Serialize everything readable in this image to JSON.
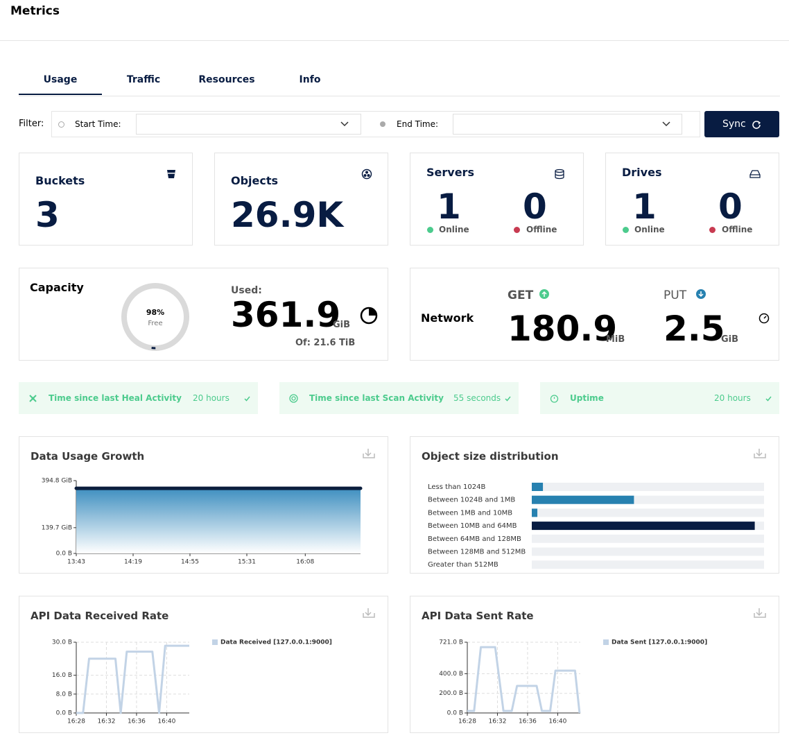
{
  "header": {
    "title": "Metrics"
  },
  "tabs": [
    "Usage",
    "Traffic",
    "Resources",
    "Info"
  ],
  "filter": {
    "label": "Filter:",
    "start_time": "Start Time:",
    "end_time": "End Time:",
    "sync": "Sync"
  },
  "buckets": {
    "title": "Buckets",
    "value": 3
  },
  "objects": {
    "title": "Objects",
    "value": "26.9K"
  },
  "servers": {
    "title": "Servers",
    "online": 1,
    "online_label": "Online",
    "offline": 0,
    "offline_label": "Offline"
  },
  "drives": {
    "title": "Drives",
    "online": 1,
    "online_label": "Online",
    "offline": 0,
    "offline_label": "Offline"
  },
  "capacity": {
    "title": "Capacity",
    "free_percent": 98,
    "free_percent_label": "98%",
    "free_label": "Free",
    "used_label": "Used:",
    "used": 361.9,
    "used_unit": "GiB",
    "total": "Of: 21.6 TiB"
  },
  "network": {
    "title": "Network",
    "get_label": "GET",
    "get": 180.9,
    "get_unit": "MiB",
    "put_label": "PUT",
    "put": 2.5,
    "put_unit": "GiB"
  },
  "activity": [
    {
      "label": "Time since last Heal Activity",
      "value": "20 hours"
    },
    {
      "label": "Time since last Scan Activity",
      "value": "55 seconds"
    },
    {
      "label": "Uptime",
      "value": "20 hours"
    }
  ],
  "chart_data": [
    {
      "type": "area",
      "title": "Data Usage Growth",
      "series": [
        {
          "color": "#0b1e3d",
          "fill": "#3f8fc0",
          "x": [
            823,
            1003
          ],
          "values": [
            353,
            353
          ]
        }
      ],
      "xlim": [
        823,
        1003
      ],
      "xticks": [
        {
          "value": 823,
          "label": "13:43"
        },
        {
          "value": 859,
          "label": "14:19"
        },
        {
          "value": 895,
          "label": "14:55"
        },
        {
          "value": 931,
          "label": "15:31"
        },
        {
          "value": 968,
          "label": "16:08"
        }
      ],
      "ylim": [
        0,
        394.8
      ],
      "yticks": [
        {
          "value": 394.8,
          "label": "394.8 GiB"
        },
        {
          "value": 139.7,
          "label": "139.7 GiB"
        },
        {
          "value": 0,
          "label": "0.0 B"
        }
      ],
      "grid": false
    },
    {
      "type": "hbar",
      "title": "Object size distribution",
      "categories": [
        "Less than 1024B",
        "Between 1024B and 1MB",
        "Between 1MB and 10MB",
        "Between 10MB and 64MB",
        "Between 64MB and 128MB",
        "Between 128MB and 512MB",
        "Greater than 512MB"
      ],
      "values": [
        4.8,
        44,
        2.4,
        96,
        0,
        0,
        0
      ],
      "colors": [
        "#2781b0",
        "#2781b0",
        "#2781b0",
        "#081c42",
        "#2781b0",
        "#2781b0",
        "#2781b0"
      ],
      "xlim": [
        0,
        100
      ]
    },
    {
      "type": "line",
      "title": "API Data Received Rate",
      "series": [
        {
          "name": "Data Received [127.0.0.1:9000]",
          "color": "#c2d3e6",
          "x": [
            988,
            988.9,
            989.7,
            993.2,
            993.9,
            994.7,
            998.1,
            999,
            999.8,
            1003
          ],
          "values": [
            0,
            0,
            23,
            23,
            0,
            26,
            26,
            0,
            28.5,
            28.5
          ]
        }
      ],
      "xlim": [
        988,
        1003
      ],
      "xticks": [
        {
          "value": 988,
          "label": "16:28"
        },
        {
          "value": 992,
          "label": "16:32"
        },
        {
          "value": 996,
          "label": "16:36"
        },
        {
          "value": 1000,
          "label": "16:40"
        }
      ],
      "ylim": [
        0,
        30
      ],
      "yticks": [
        {
          "value": 30,
          "label": "30.0 B"
        },
        {
          "value": 16,
          "label": "16.0 B"
        },
        {
          "value": 8,
          "label": "8.0 B"
        },
        {
          "value": 0,
          "label": "0.0 B"
        }
      ],
      "grid": true
    },
    {
      "type": "line",
      "title": "API Data Sent Rate",
      "series": [
        {
          "name": "Data Sent [127.0.0.1:9000]",
          "color": "#c2d3e6",
          "x": [
            988,
            988.9,
            989.8,
            991.7,
            992.8,
            993.9,
            994.6,
            997.2,
            997.9,
            999,
            999.7,
            1002.3,
            1002.9
          ],
          "values": [
            20,
            20,
            671,
            671,
            20,
            20,
            276,
            276,
            20,
            20,
            431,
            431,
            0
          ]
        }
      ],
      "xlim": [
        988,
        1003
      ],
      "xticks": [
        {
          "value": 988,
          "label": "16:28"
        },
        {
          "value": 992,
          "label": "16:32"
        },
        {
          "value": 996,
          "label": "16:36"
        },
        {
          "value": 1000,
          "label": "16:40"
        }
      ],
      "ylim": [
        0,
        721
      ],
      "yticks": [
        {
          "value": 721,
          "label": "721.0 B"
        },
        {
          "value": 400,
          "label": "400.0 B"
        },
        {
          "value": 200,
          "label": "200.0 B"
        },
        {
          "value": 0,
          "label": "0.0 B"
        }
      ],
      "grid": true
    }
  ]
}
